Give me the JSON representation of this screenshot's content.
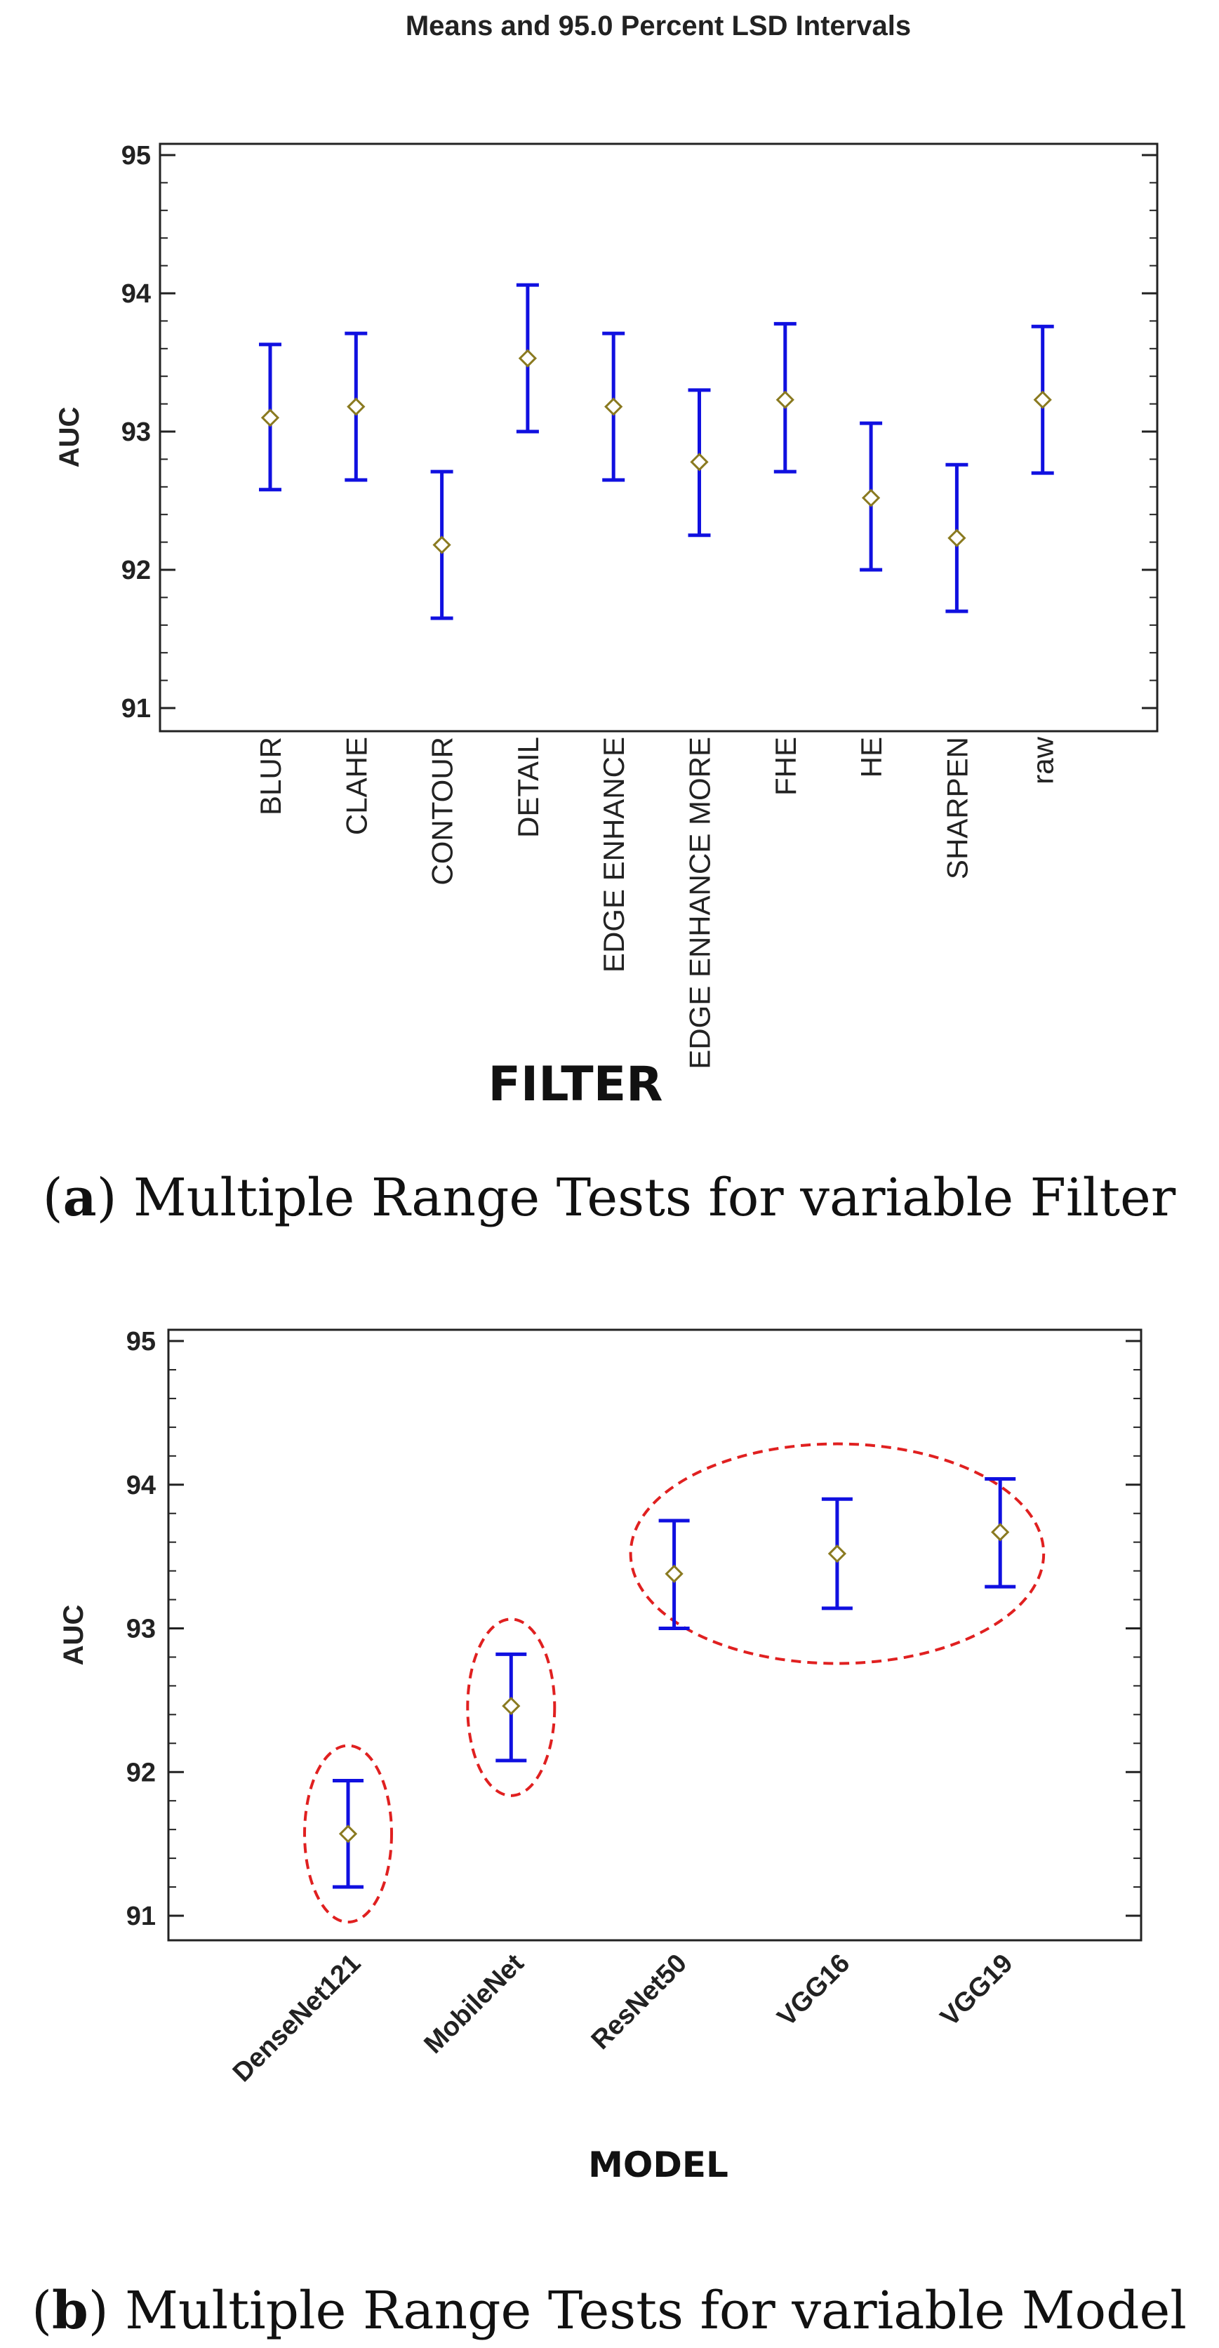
{
  "chart_data": [
    {
      "type": "interval",
      "title": "Means and 95.0 Percent LSD Intervals",
      "xlabel": "FILTER",
      "ylabel": "AUC",
      "ylim": [
        91,
        95
      ],
      "yticks": [
        "91",
        "92",
        "93",
        "94",
        "95"
      ],
      "categories": [
        "BLUR",
        "CLAHE",
        "CONTOUR",
        "DETAIL",
        "EDGE ENHANCE",
        "EDGE ENHANCE MORE",
        "FHE",
        "HE",
        "SHARPEN",
        "raw"
      ],
      "means": [
        93.1,
        93.18,
        92.18,
        93.53,
        93.18,
        92.78,
        93.23,
        92.52,
        92.23,
        93.23
      ],
      "lower": [
        92.58,
        92.65,
        91.65,
        93.0,
        92.65,
        92.25,
        92.71,
        92.0,
        91.7,
        92.7
      ],
      "upper": [
        93.63,
        93.71,
        92.71,
        94.06,
        93.71,
        93.3,
        93.78,
        93.06,
        92.76,
        93.76
      ],
      "caption_label": "a",
      "caption_text": "Multiple Range Tests for variable Filter",
      "colors": {
        "interval": "#1010e0",
        "marker": "#8a7a20"
      }
    },
    {
      "type": "interval",
      "title": "",
      "xlabel": "MODEL",
      "ylabel": "AUC",
      "ylim": [
        91,
        95
      ],
      "yticks": [
        "91",
        "92",
        "93",
        "94",
        "95"
      ],
      "categories": [
        "DenseNet121",
        "MobileNet",
        "ResNet50",
        "VGG16",
        "VGG19"
      ],
      "means": [
        91.57,
        92.46,
        93.38,
        93.52,
        93.67
      ],
      "lower": [
        91.2,
        92.08,
        93.0,
        93.14,
        93.29
      ],
      "upper": [
        91.94,
        92.82,
        93.75,
        93.9,
        94.04
      ],
      "groups": [
        [
          "DenseNet121"
        ],
        [
          "MobileNet"
        ],
        [
          "ResNet50",
          "VGG16",
          "VGG19"
        ]
      ],
      "caption_label": "b",
      "caption_text": "Multiple Range Tests for variable Model",
      "colors": {
        "interval": "#1010e0",
        "marker": "#8a7a20",
        "group": "#e02020"
      }
    }
  ]
}
